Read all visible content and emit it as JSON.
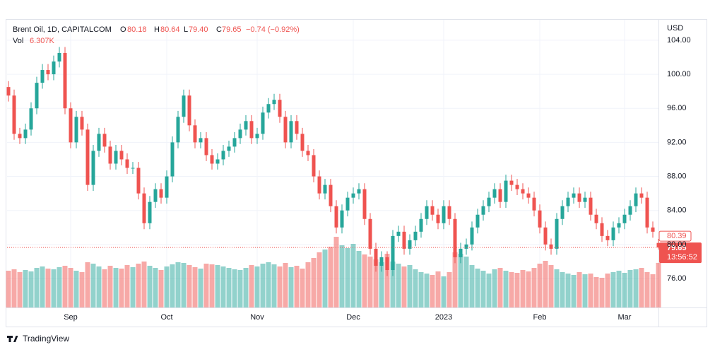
{
  "chart_data": {
    "type": "candlestick",
    "title": "Brent Oil, 1D, CAPITALCOM",
    "ohlc_letters": [
      "O",
      "H",
      "L",
      "C"
    ],
    "last_value_labels": [
      "80.18",
      "80.64",
      "79.40",
      "79.65"
    ],
    "change_label": "−0.74 (−0.92%)",
    "volume_title": "Vol",
    "volume_value_label": "6.307K",
    "currency": "USD",
    "price_badges": {
      "previous": "80.39",
      "last": "79.65",
      "countdown": "13:56:52"
    },
    "brand": "TradingView",
    "up_color": "#26a69a",
    "down_color": "#ef5350",
    "grid": true,
    "ylim": [
      72.6,
      106.4
    ],
    "yticks": [
      {
        "value": 76,
        "label": "76.00"
      },
      {
        "value": 80,
        "label": "80.00"
      },
      {
        "value": 84,
        "label": "84.00"
      },
      {
        "value": 88,
        "label": "88.00"
      },
      {
        "value": 92,
        "label": "92.00"
      },
      {
        "value": 96,
        "label": "96.00"
      },
      {
        "value": 100,
        "label": "100.00"
      },
      {
        "value": 104,
        "label": "104.00"
      }
    ],
    "categories": [
      null,
      null,
      null,
      null,
      null,
      null,
      null,
      null,
      null,
      null,
      null,
      "Sep",
      null,
      null,
      null,
      null,
      null,
      null,
      null,
      null,
      null,
      null,
      null,
      null,
      null,
      null,
      null,
      null,
      "Oct",
      null,
      null,
      null,
      null,
      null,
      null,
      null,
      null,
      null,
      null,
      null,
      null,
      null,
      null,
      null,
      "Nov",
      null,
      null,
      null,
      null,
      null,
      null,
      null,
      null,
      null,
      null,
      null,
      null,
      null,
      null,
      null,
      null,
      "Dec",
      null,
      null,
      null,
      null,
      null,
      null,
      null,
      null,
      null,
      null,
      null,
      null,
      null,
      null,
      null,
      "2023",
      null,
      null,
      null,
      null,
      null,
      null,
      null,
      null,
      null,
      null,
      null,
      null,
      null,
      null,
      null,
      null,
      "Feb",
      null,
      null,
      null,
      null,
      null,
      null,
      null,
      null,
      null,
      null,
      null,
      null,
      null,
      null,
      "Mar",
      null,
      null,
      null,
      null,
      null,
      null
    ],
    "open": [
      98.5,
      97.5,
      93,
      92.5,
      93.5,
      96,
      99,
      100.5,
      100,
      101.5,
      102.5,
      96,
      92,
      95,
      93.5,
      87,
      91,
      93,
      91.5,
      89.5,
      91,
      90,
      89,
      89,
      86,
      82.5,
      85,
      86.5,
      85.5,
      88,
      92,
      95,
      97.5,
      94,
      92,
      92.5,
      90.5,
      89.5,
      90,
      91,
      91.5,
      92.5,
      93.5,
      94.5,
      92.5,
      93,
      95.5,
      96.5,
      97,
      95,
      92,
      94.5,
      93,
      91,
      90.5,
      88,
      86,
      87,
      84.5,
      82,
      84,
      85.5,
      86,
      86.5,
      83,
      79.5,
      77.5,
      78.5,
      77,
      81,
      81.5,
      79.5,
      80.5,
      81.5,
      83,
      84.5,
      83.5,
      82.5,
      84.5,
      83,
      78.5,
      79.5,
      80,
      82,
      83.5,
      84.5,
      85.5,
      86.5,
      85,
      87.5,
      87,
      86.5,
      86,
      85.5,
      84,
      82,
      80,
      79.5,
      83,
      84.5,
      85.5,
      86,
      85,
      85.5,
      83.5,
      82.5,
      81,
      80.5,
      82,
      82.5,
      83.5,
      84.5,
      86,
      85.5,
      82,
      80.18
    ],
    "high": [
      99.2,
      98.2,
      93.7,
      94.2,
      96.7,
      99.7,
      101.2,
      101.2,
      102.2,
      103.2,
      103.2,
      96.7,
      95.7,
      95.7,
      94.2,
      91.7,
      93.7,
      93.7,
      92.2,
      91.7,
      91.7,
      90.7,
      89.7,
      89.7,
      86.7,
      85.7,
      87.2,
      87.2,
      88.7,
      92.7,
      95.7,
      98.2,
      98.2,
      94.7,
      93.2,
      93.2,
      91.2,
      90.7,
      91.7,
      92.2,
      93.2,
      94.2,
      95.2,
      95.2,
      93.7,
      96.2,
      97.2,
      97.7,
      97.7,
      95.7,
      95.2,
      95.2,
      93.7,
      91.7,
      91.2,
      88.7,
      87.7,
      87.7,
      85.2,
      84.7,
      86.2,
      86.7,
      87.2,
      87.2,
      83.7,
      80.2,
      79.2,
      79.2,
      81.7,
      82.2,
      82.2,
      81.2,
      82.2,
      83.7,
      85.2,
      85.2,
      84.2,
      85.2,
      85.2,
      83.7,
      80.2,
      80.7,
      82.7,
      84.2,
      85.2,
      86.2,
      87.2,
      87.2,
      88.2,
      88.2,
      87.7,
      87.2,
      86.7,
      86.2,
      84.7,
      82.7,
      80.7,
      83.7,
      85.2,
      86.2,
      86.7,
      86.7,
      86.2,
      86.2,
      84.2,
      83.2,
      81.7,
      82.7,
      83.2,
      84.2,
      85.2,
      86.7,
      86.7,
      86.2,
      82.7,
      80.64
    ],
    "low": [
      96.8,
      92.3,
      91.8,
      91.8,
      92.8,
      95.3,
      98.3,
      99.3,
      99.3,
      100.8,
      95.3,
      91.3,
      91.3,
      92.8,
      86.3,
      86.3,
      90.3,
      90.8,
      88.8,
      88.8,
      89.3,
      88.3,
      88.3,
      85.3,
      81.8,
      81.8,
      84.3,
      84.8,
      84.8,
      87.3,
      91.3,
      94.3,
      93.3,
      91.3,
      91.3,
      89.8,
      88.8,
      88.8,
      89.3,
      90.3,
      90.8,
      91.8,
      92.8,
      91.8,
      91.8,
      92.3,
      94.8,
      95.8,
      94.3,
      91.3,
      91.3,
      92.3,
      90.3,
      89.8,
      87.3,
      85.3,
      85.3,
      83.8,
      81.3,
      81.3,
      83.3,
      84.8,
      85.3,
      82.3,
      78.8,
      76.8,
      76.8,
      76.3,
      76.3,
      80.3,
      78.8,
      78.8,
      79.8,
      80.8,
      82.3,
      82.8,
      81.8,
      81.8,
      82.3,
      77.8,
      77.8,
      78.8,
      79.3,
      81.3,
      82.8,
      83.8,
      84.8,
      84.3,
      84.3,
      86.3,
      85.8,
      85.3,
      84.8,
      83.3,
      81.3,
      79.3,
      78.8,
      78.8,
      82.3,
      83.8,
      84.8,
      84.3,
      84.3,
      82.8,
      81.8,
      80.3,
      79.8,
      79.8,
      81.3,
      81.8,
      82.8,
      83.8,
      84.8,
      81.3,
      80.8,
      79.4
    ],
    "close": [
      97.5,
      93,
      92.5,
      93.5,
      96,
      99,
      100.5,
      100,
      101.5,
      102.5,
      96,
      92,
      95,
      93.5,
      87,
      91,
      93,
      91.5,
      89.5,
      91,
      90,
      89,
      89,
      86,
      82.5,
      85,
      86.5,
      85.5,
      88,
      92,
      95,
      97.5,
      94,
      92,
      92.5,
      90.5,
      89.5,
      90,
      91,
      91.5,
      92.5,
      93.5,
      94.5,
      92.5,
      93,
      95.5,
      96.5,
      97,
      95,
      92,
      94.5,
      93,
      91,
      90.5,
      88,
      86,
      87,
      84.5,
      82,
      84,
      85.5,
      86,
      86.5,
      83,
      79.5,
      77.5,
      78.5,
      77,
      81,
      81.5,
      79.5,
      80.5,
      81.5,
      83,
      84.5,
      83.5,
      82.5,
      84.5,
      83,
      78.5,
      79.5,
      80,
      82,
      83.5,
      84.5,
      85.5,
      86.5,
      85,
      87.5,
      87,
      86.5,
      86,
      85.5,
      84,
      82,
      80,
      79.5,
      83,
      84.5,
      85.5,
      86,
      85,
      85.5,
      83.5,
      82.5,
      81,
      80.5,
      82,
      82.5,
      83.5,
      84.5,
      86,
      85.5,
      82,
      81.5,
      79.65
    ],
    "volume": [
      5.2,
      5.4,
      5.0,
      5.3,
      5.1,
      5.6,
      5.8,
      5.5,
      5.4,
      5.7,
      5.9,
      5.6,
      5.2,
      5.0,
      6.4,
      6.2,
      5.8,
      5.4,
      5.9,
      5.6,
      5.5,
      6.0,
      5.7,
      6.2,
      6.5,
      5.9,
      5.6,
      5.3,
      5.8,
      6.1,
      6.4,
      6.3,
      6.0,
      5.7,
      5.5,
      6.2,
      6.1,
      6.0,
      5.8,
      5.6,
      5.4,
      5.3,
      5.6,
      6.0,
      5.8,
      6.2,
      6.4,
      6.1,
      5.8,
      6.3,
      5.7,
      5.9,
      5.5,
      6.4,
      7.0,
      7.8,
      8.2,
      8.6,
      10.0,
      8.8,
      8.4,
      9.0,
      8.0,
      7.5,
      7.2,
      6.8,
      6.4,
      7.6,
      6.5,
      6.2,
      5.8,
      6.0,
      5.4,
      5.0,
      4.8,
      4.6,
      5.1,
      4.4,
      5.0,
      7.8,
      7.6,
      7.2,
      6.0,
      5.5,
      5.2,
      4.8,
      5.4,
      5.6,
      5.2,
      5.0,
      4.9,
      5.3,
      5.1,
      5.6,
      6.2,
      6.6,
      6.0,
      5.4,
      5.0,
      4.8,
      4.6,
      5.0,
      4.7,
      4.8,
      4.3,
      4.2,
      4.8,
      5.0,
      5.2,
      4.9,
      5.3,
      5.4,
      5.6,
      5.0,
      4.7,
      6.307
    ]
  }
}
